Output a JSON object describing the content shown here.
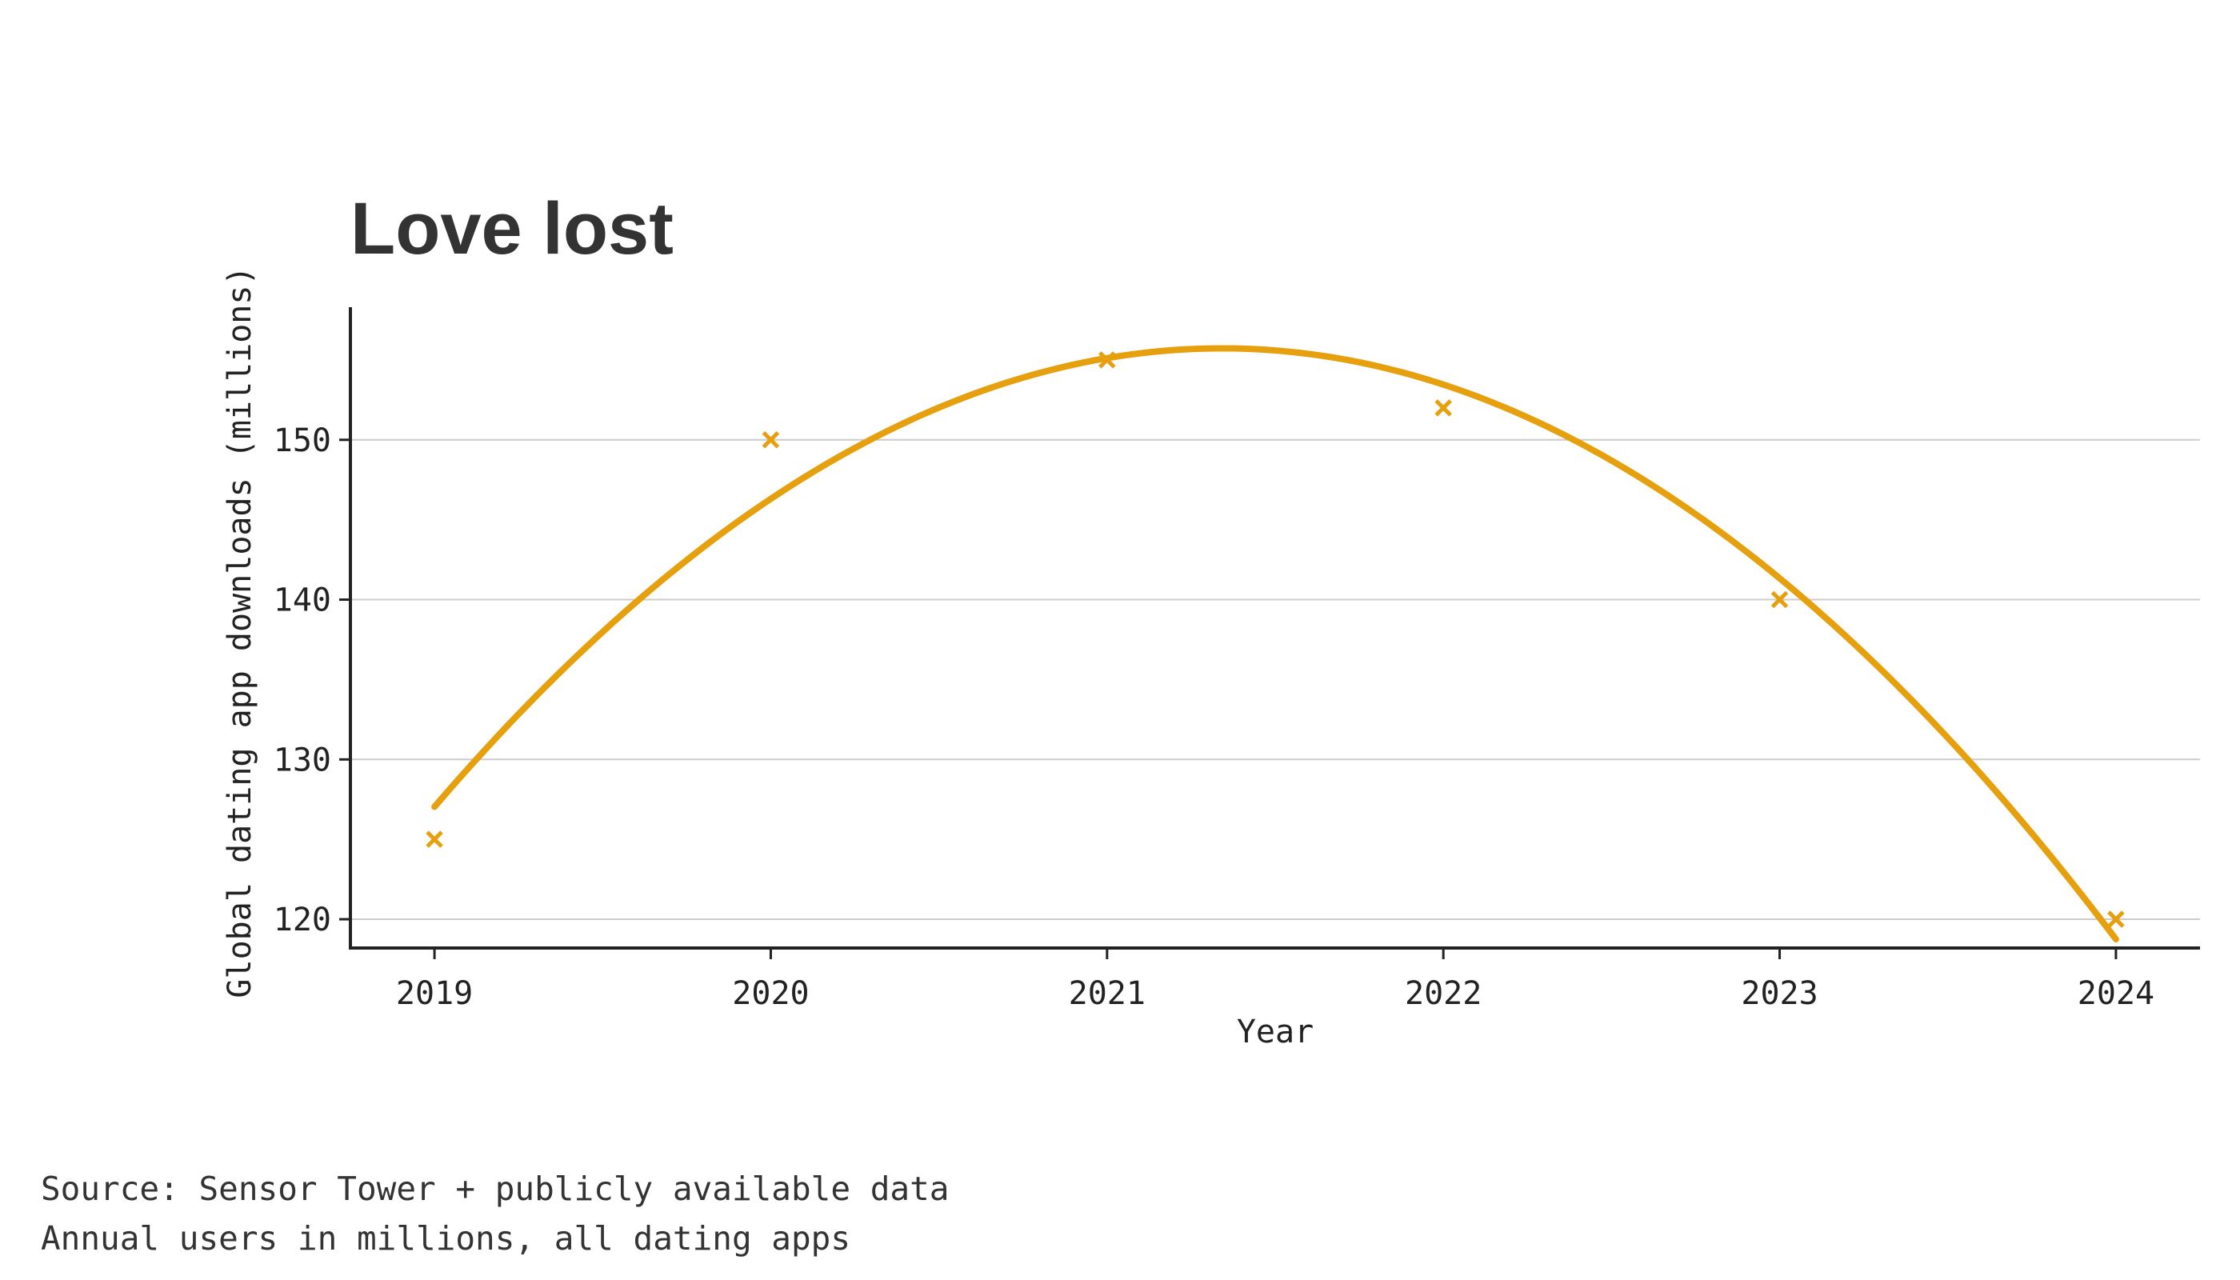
{
  "chart_data": {
    "type": "line",
    "title": "Love lost",
    "xlabel": "Year",
    "ylabel": "Global dating app downloads (millions)",
    "x": [
      2019,
      2020,
      2021,
      2022,
      2023,
      2024
    ],
    "series": [
      {
        "values": [
          125,
          150,
          155,
          152,
          140,
          120
        ],
        "marker": "x",
        "fit": "quadratic",
        "color": "#E6A00E"
      }
    ],
    "xlim": [
      2018.75,
      2024.25
    ],
    "ylim": [
      118.2,
      158.3
    ],
    "yticks": [
      120,
      130,
      140,
      150
    ],
    "xticks": [
      2019,
      2020,
      2021,
      2022,
      2023,
      2024
    ],
    "grid": "horizontal",
    "legend": "none"
  },
  "footer": {
    "source": "Source: Sensor Tower + publicly available data",
    "note": "Annual users in millions, all dating apps"
  },
  "colors": {
    "accent": "#E6A00E",
    "grid": "#cccccc",
    "axis": "#222222",
    "title": "#333333"
  }
}
